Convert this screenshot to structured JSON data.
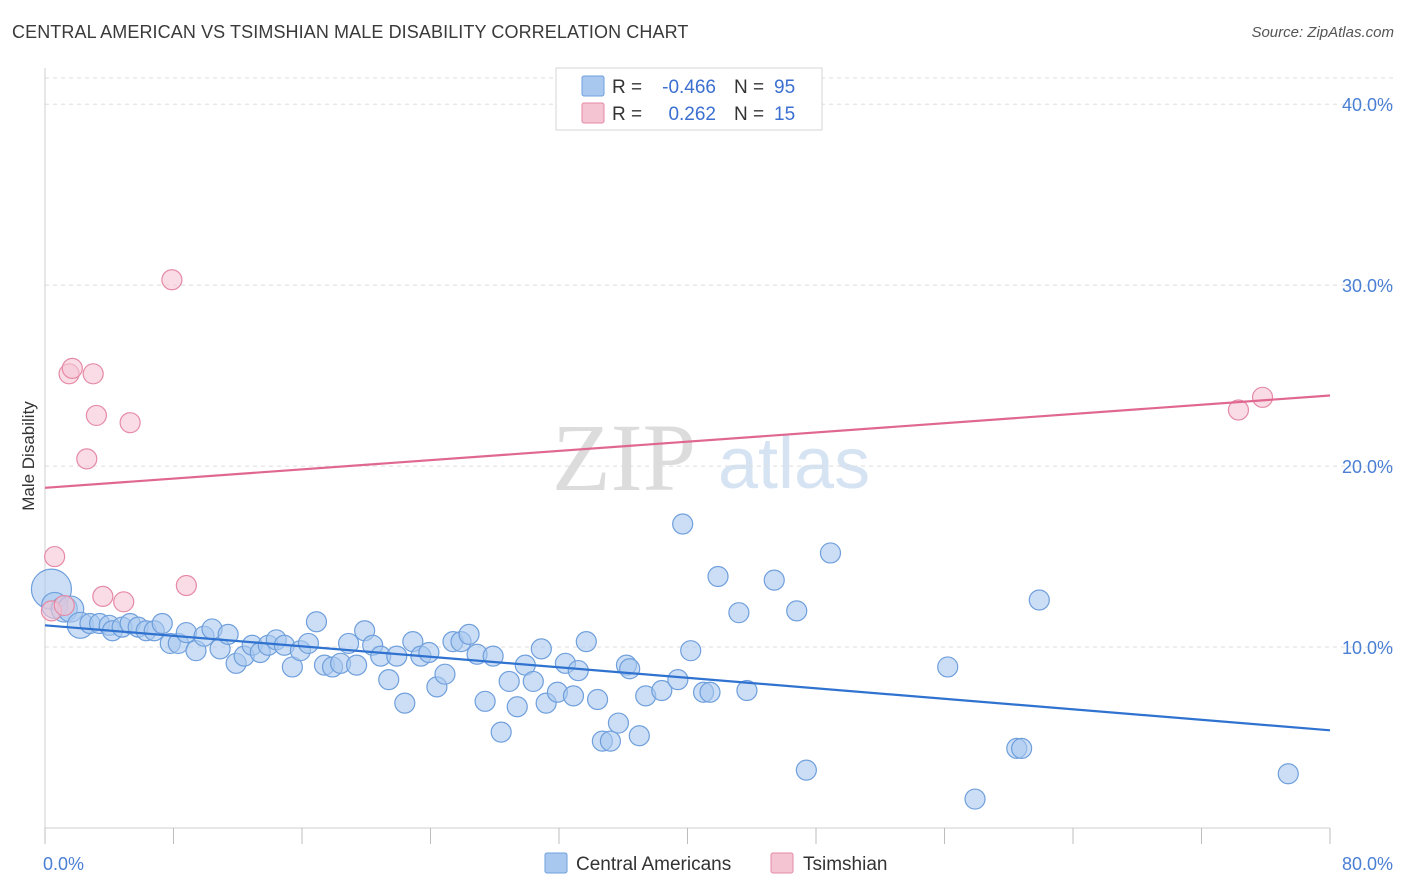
{
  "header": {
    "title": "CENTRAL AMERICAN VS TSIMSHIAN MALE DISABILITY CORRELATION CHART",
    "source": "Source: ZipAtlas.com"
  },
  "watermark": {
    "zip": "ZIP",
    "atlas": "atlas"
  },
  "colors": {
    "blue_fill": "#a9c8ef",
    "blue_stroke": "#6f9fdc",
    "blue_line": "#2f72d0",
    "pink_fill": "#f5c4d3",
    "pink_stroke": "#e58aa6",
    "pink_line": "#e0678f",
    "grid": "#dddddd",
    "tick_text": "#4a7fd4"
  },
  "legend_top": {
    "rows": [
      {
        "r_label": "R =",
        "r_value": "-0.466",
        "n_label": "N =",
        "n_value": "95"
      },
      {
        "r_label": "R =",
        "r_value": "0.262",
        "n_label": "N =",
        "n_value": "15"
      }
    ]
  },
  "legend_bottom": {
    "items": [
      {
        "label": "Central Americans"
      },
      {
        "label": "Tsimshian"
      }
    ]
  },
  "chart_data": {
    "type": "scatter",
    "title": "CENTRAL AMERICAN VS TSIMSHIAN MALE DISABILITY CORRELATION CHART",
    "xlabel": "",
    "ylabel": "Male Disability",
    "xlim": [
      0,
      80
    ],
    "ylim": [
      0,
      42
    ],
    "x_tick_labels": [
      "0.0%",
      "80.0%"
    ],
    "y_ticks": [
      10,
      20,
      30,
      40
    ],
    "y_tick_labels": [
      "10.0%",
      "20.0%",
      "30.0%",
      "40.0%"
    ],
    "grid": true,
    "series": [
      {
        "name": "Central Americans",
        "color": "blue",
        "r": -0.466,
        "n": 95,
        "trend": {
          "x": [
            0,
            80
          ],
          "y": [
            11.2,
            5.4
          ]
        },
        "points": [
          {
            "x": 0.4,
            "y": 13.2,
            "s": "xl"
          },
          {
            "x": 0.6,
            "y": 12.3,
            "s": "l"
          },
          {
            "x": 1.2,
            "y": 12.1,
            "s": "l"
          },
          {
            "x": 1.6,
            "y": 12.1,
            "s": "l"
          },
          {
            "x": 2.2,
            "y": 11.2,
            "s": "l"
          },
          {
            "x": 2.8,
            "y": 11.3
          },
          {
            "x": 3.4,
            "y": 11.3
          },
          {
            "x": 4.0,
            "y": 11.2
          },
          {
            "x": 4.2,
            "y": 10.9
          },
          {
            "x": 4.8,
            "y": 11.1
          },
          {
            "x": 5.3,
            "y": 11.3
          },
          {
            "x": 5.8,
            "y": 11.1
          },
          {
            "x": 6.3,
            "y": 10.9
          },
          {
            "x": 6.8,
            "y": 10.9
          },
          {
            "x": 7.3,
            "y": 11.3
          },
          {
            "x": 7.8,
            "y": 10.2
          },
          {
            "x": 8.3,
            "y": 10.2
          },
          {
            "x": 8.8,
            "y": 10.8
          },
          {
            "x": 9.4,
            "y": 9.8
          },
          {
            "x": 9.9,
            "y": 10.6
          },
          {
            "x": 10.4,
            "y": 11.0
          },
          {
            "x": 10.9,
            "y": 9.9
          },
          {
            "x": 11.4,
            "y": 10.7
          },
          {
            "x": 11.9,
            "y": 9.1
          },
          {
            "x": 12.4,
            "y": 9.5
          },
          {
            "x": 12.9,
            "y": 10.1
          },
          {
            "x": 13.4,
            "y": 9.7
          },
          {
            "x": 13.9,
            "y": 10.1
          },
          {
            "x": 14.4,
            "y": 10.4
          },
          {
            "x": 14.9,
            "y": 10.1
          },
          {
            "x": 15.4,
            "y": 8.9
          },
          {
            "x": 15.9,
            "y": 9.8
          },
          {
            "x": 16.4,
            "y": 10.2
          },
          {
            "x": 16.9,
            "y": 11.4
          },
          {
            "x": 17.4,
            "y": 9.0
          },
          {
            "x": 17.9,
            "y": 8.9
          },
          {
            "x": 18.4,
            "y": 9.1
          },
          {
            "x": 18.9,
            "y": 10.2
          },
          {
            "x": 19.4,
            "y": 9.0
          },
          {
            "x": 19.9,
            "y": 10.9
          },
          {
            "x": 20.4,
            "y": 10.1
          },
          {
            "x": 20.9,
            "y": 9.5
          },
          {
            "x": 21.4,
            "y": 8.2
          },
          {
            "x": 21.9,
            "y": 9.5
          },
          {
            "x": 22.4,
            "y": 6.9
          },
          {
            "x": 22.9,
            "y": 10.3
          },
          {
            "x": 23.4,
            "y": 9.5
          },
          {
            "x": 23.9,
            "y": 9.7
          },
          {
            "x": 24.4,
            "y": 7.8
          },
          {
            "x": 24.9,
            "y": 8.5
          },
          {
            "x": 25.4,
            "y": 10.3
          },
          {
            "x": 25.9,
            "y": 10.3
          },
          {
            "x": 26.4,
            "y": 10.7
          },
          {
            "x": 26.9,
            "y": 9.6
          },
          {
            "x": 27.4,
            "y": 7.0
          },
          {
            "x": 27.9,
            "y": 9.5
          },
          {
            "x": 28.4,
            "y": 5.3
          },
          {
            "x": 28.9,
            "y": 8.1
          },
          {
            "x": 29.4,
            "y": 6.7
          },
          {
            "x": 29.9,
            "y": 9.0
          },
          {
            "x": 30.4,
            "y": 8.1
          },
          {
            "x": 30.9,
            "y": 9.9
          },
          {
            "x": 31.2,
            "y": 6.9
          },
          {
            "x": 31.9,
            "y": 7.5
          },
          {
            "x": 32.4,
            "y": 9.1
          },
          {
            "x": 32.9,
            "y": 7.3
          },
          {
            "x": 33.2,
            "y": 8.7
          },
          {
            "x": 33.7,
            "y": 10.3
          },
          {
            "x": 34.4,
            "y": 7.1
          },
          {
            "x": 34.7,
            "y": 4.8
          },
          {
            "x": 35.2,
            "y": 4.8
          },
          {
            "x": 35.7,
            "y": 5.8
          },
          {
            "x": 36.2,
            "y": 9.0
          },
          {
            "x": 36.4,
            "y": 8.8
          },
          {
            "x": 37.0,
            "y": 5.1
          },
          {
            "x": 37.4,
            "y": 7.3
          },
          {
            "x": 38.4,
            "y": 7.6
          },
          {
            "x": 39.4,
            "y": 8.2
          },
          {
            "x": 39.7,
            "y": 16.8
          },
          {
            "x": 40.2,
            "y": 9.8
          },
          {
            "x": 41.0,
            "y": 7.5
          },
          {
            "x": 41.4,
            "y": 7.5
          },
          {
            "x": 41.9,
            "y": 13.9
          },
          {
            "x": 43.2,
            "y": 11.9
          },
          {
            "x": 43.7,
            "y": 7.6
          },
          {
            "x": 45.4,
            "y": 13.7
          },
          {
            "x": 46.8,
            "y": 12.0
          },
          {
            "x": 47.4,
            "y": 3.2
          },
          {
            "x": 48.9,
            "y": 15.2
          },
          {
            "x": 56.2,
            "y": 8.9
          },
          {
            "x": 57.9,
            "y": 1.6
          },
          {
            "x": 60.5,
            "y": 4.4
          },
          {
            "x": 60.8,
            "y": 4.4
          },
          {
            "x": 61.9,
            "y": 12.6
          },
          {
            "x": 77.4,
            "y": 3.0
          }
        ]
      },
      {
        "name": "Tsimshian",
        "color": "pink",
        "r": 0.262,
        "n": 15,
        "trend": {
          "x": [
            0,
            80
          ],
          "y": [
            18.8,
            23.9
          ]
        },
        "points": [
          {
            "x": 0.4,
            "y": 12.0
          },
          {
            "x": 0.6,
            "y": 15.0
          },
          {
            "x": 1.2,
            "y": 12.3
          },
          {
            "x": 1.5,
            "y": 25.1
          },
          {
            "x": 1.7,
            "y": 25.4
          },
          {
            "x": 2.6,
            "y": 20.4
          },
          {
            "x": 3.0,
            "y": 25.1
          },
          {
            "x": 3.2,
            "y": 22.8
          },
          {
            "x": 3.6,
            "y": 12.8
          },
          {
            "x": 4.9,
            "y": 12.5
          },
          {
            "x": 5.3,
            "y": 22.4
          },
          {
            "x": 7.9,
            "y": 30.3
          },
          {
            "x": 8.8,
            "y": 13.4
          },
          {
            "x": 74.3,
            "y": 23.1
          },
          {
            "x": 75.8,
            "y": 23.8
          }
        ]
      }
    ]
  }
}
